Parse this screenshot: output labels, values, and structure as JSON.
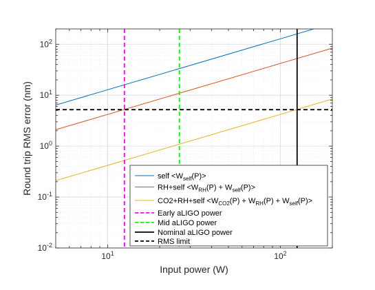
{
  "chart_data": {
    "type": "line",
    "xlabel": "Input power (W)",
    "ylabel": "Round trip RMS error (nm)",
    "xscale": "log",
    "yscale": "log",
    "xlim": [
      5,
      200
    ],
    "ylim": [
      0.01,
      200
    ],
    "grid": true,
    "legend_placement": "bottom-right",
    "xticks": [
      {
        "value": 10,
        "base": "10",
        "exp": "1"
      },
      {
        "value": 100,
        "base": "10",
        "exp": "2"
      }
    ],
    "yticks": [
      {
        "value": 0.01,
        "base": "10",
        "exp": "-2"
      },
      {
        "value": 0.1,
        "base": "10",
        "exp": "-1"
      },
      {
        "value": 1,
        "base": "10",
        "exp": "0"
      },
      {
        "value": 10,
        "base": "10",
        "exp": "1"
      },
      {
        "value": 100,
        "base": "10",
        "exp": "2"
      }
    ],
    "series": [
      {
        "key": "self",
        "color": "#0072BD",
        "style": "solid",
        "x": [
          5,
          200
        ],
        "y": [
          6.4,
          256
        ],
        "legend": [
          {
            "text": "self <W",
            "sub": false
          },
          {
            "text": "self",
            "sub": true
          },
          {
            "text": "(P)>",
            "sub": false
          }
        ]
      },
      {
        "key": "rh-self",
        "color": "#D95319",
        "style": "solid",
        "x": [
          5,
          200
        ],
        "y": [
          2.1,
          84
        ],
        "legend": [
          {
            "text": "RH+self <W",
            "sub": false
          },
          {
            "text": "RH",
            "sub": true
          },
          {
            "text": "(P) + W",
            "sub": false
          },
          {
            "text": "self",
            "sub": true
          },
          {
            "text": "(P)>",
            "sub": false
          }
        ]
      },
      {
        "key": "co2-rh-self",
        "color": "#EDB120",
        "style": "solid",
        "x": [
          5,
          200
        ],
        "y": [
          0.21,
          8.4
        ],
        "legend": [
          {
            "text": "CO2+RH+self <W",
            "sub": false
          },
          {
            "text": "CO2",
            "sub": true
          },
          {
            "text": "(P) + W",
            "sub": false
          },
          {
            "text": "RH",
            "sub": true
          },
          {
            "text": "(P) + W",
            "sub": false
          },
          {
            "text": "self",
            "sub": true
          },
          {
            "text": "(P)>",
            "sub": false
          }
        ]
      }
    ],
    "vlines": [
      {
        "key": "early",
        "x": 12.5,
        "color": "#FF00FF",
        "style": "dashed",
        "legend": "Early aLIGO power"
      },
      {
        "key": "mid",
        "x": 26,
        "color": "#00FF00",
        "style": "dashed",
        "legend": "Mid aLIGO power"
      },
      {
        "key": "nominal",
        "x": 125,
        "color": "#000000",
        "style": "solid",
        "legend": "Nominal aLIGO power"
      }
    ],
    "hlines": [
      {
        "key": "rms-limit",
        "y": 5.2,
        "color": "#000000",
        "style": "dashed",
        "legend": "RMS limit"
      }
    ]
  }
}
